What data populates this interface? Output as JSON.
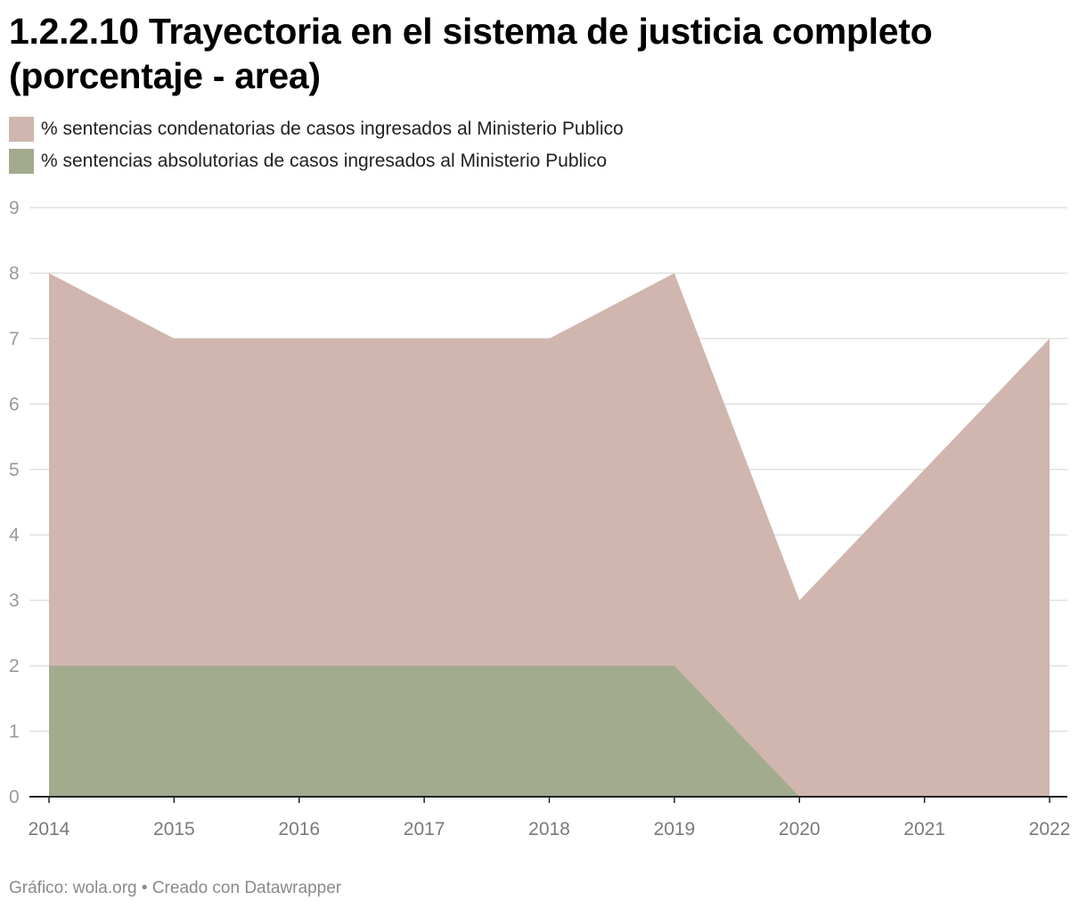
{
  "title": "1.2.2.10 Trayectoria en el sistema de justicia completo (porcentaje - area)",
  "legend": [
    {
      "label": "% sentencias condenatorias de casos ingresados al Ministerio Publico",
      "color": "#d0b6ae"
    },
    {
      "label": "% sentencias absolutorias de casos ingresados al Ministerio Publico",
      "color": "#a2ab8e"
    }
  ],
  "footer": "Gráfico: wola.org • Creado con Datawrapper",
  "colors": {
    "condenatorias": "#d0b6ae",
    "absolutorias": "#a2ab8e",
    "grid": "#e0e0e0",
    "axis": "#222222",
    "tick_label": "#9a9a9a"
  },
  "chart_data": {
    "type": "area",
    "x": [
      "2014",
      "2015",
      "2016",
      "2017",
      "2018",
      "2019",
      "2020",
      "2021",
      "2022"
    ],
    "series": [
      {
        "name": "% sentencias condenatorias de casos ingresados al Ministerio Publico",
        "values": [
          8,
          7,
          7,
          7,
          7,
          8,
          3,
          5,
          7
        ]
      },
      {
        "name": "% sentencias absolutorias de casos ingresados al Ministerio Publico",
        "values": [
          2,
          2,
          2,
          2,
          2,
          2,
          0,
          0,
          0
        ]
      }
    ],
    "stacked": false,
    "ylim": [
      0,
      9
    ],
    "yticks": [
      0,
      1,
      2,
      3,
      4,
      5,
      6,
      7,
      8,
      9
    ],
    "xlabel": "",
    "ylabel": "",
    "grid": true,
    "legend_position": "top-left"
  }
}
